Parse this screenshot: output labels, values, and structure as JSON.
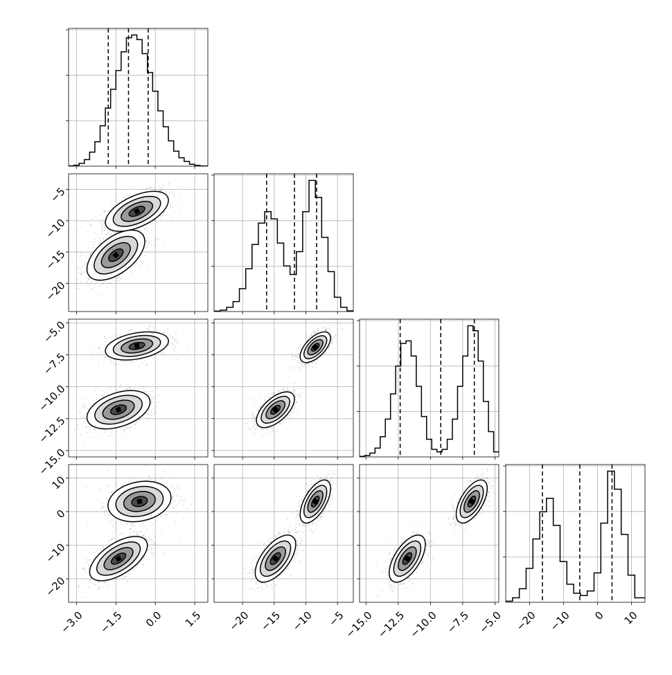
{
  "chart_data": {
    "type": "corner",
    "parameters": 4,
    "grid": true,
    "axes": [
      {
        "range": [
          -3.3,
          2.0
        ],
        "ticks": [
          -3.0,
          -1.5,
          0.0,
          1.5
        ],
        "tick_labels": [
          "−3.0",
          "−1.5",
          "0.0",
          "1.5"
        ]
      },
      {
        "range": [
          -24.5,
          -2.5
        ],
        "ticks": [
          -20,
          -15,
          -10,
          -5
        ],
        "tick_labels": [
          "−20",
          "−15",
          "−10",
          "−5"
        ]
      },
      {
        "range": [
          -15.5,
          -4.7
        ],
        "ticks": [
          -15.0,
          -12.5,
          -10.0,
          -7.5,
          -5.0
        ],
        "tick_labels": [
          "−15.0",
          "−12.5",
          "−10.0",
          "−7.5",
          "−5.0"
        ]
      },
      {
        "range": [
          -27.0,
          14.0
        ],
        "ticks": [
          -20,
          -10,
          0,
          10
        ],
        "tick_labels": [
          "−20",
          "−10",
          "0",
          "10"
        ]
      }
    ],
    "histograms": [
      {
        "param": 0,
        "quantiles": [
          -1.79,
          -1.02,
          -0.27
        ],
        "edges": [
          -3.3,
          -3.1,
          -2.9,
          -2.7,
          -2.5,
          -2.3,
          -2.1,
          -1.9,
          -1.7,
          -1.5,
          -1.3,
          -1.1,
          -0.9,
          -0.7,
          -0.5,
          -0.3,
          -0.1,
          0.1,
          0.3,
          0.5,
          0.7,
          0.9,
          1.1,
          1.3,
          1.5,
          1.7,
          2.0
        ],
        "counts": [
          0.3,
          1,
          3,
          7,
          15,
          26,
          43,
          62,
          82,
          102,
          122,
          137,
          140,
          135,
          120,
          100,
          80,
          59,
          42,
          27,
          16,
          9,
          5,
          2,
          0.8,
          0.2
        ]
      },
      {
        "param": 1,
        "quantiles": [
          -16.2,
          -11.8,
          -8.3
        ],
        "edges": [
          -24.5,
          -23.5,
          -22.5,
          -21.5,
          -20.5,
          -19.5,
          -18.5,
          -17.5,
          -16.5,
          -15.5,
          -14.5,
          -13.5,
          -12.5,
          -11.5,
          -10.5,
          -9.5,
          -8.5,
          -7.5,
          -6.5,
          -5.5,
          -4.5,
          -3.5,
          -2.5
        ],
        "counts": [
          0.3,
          1,
          3,
          7,
          16,
          30,
          47,
          62,
          70,
          65,
          48,
          32,
          26,
          42,
          70,
          92,
          80,
          52,
          28,
          10,
          3,
          0.5
        ]
      },
      {
        "param": 2,
        "quantiles": [
          -12.35,
          -9.2,
          -6.6
        ],
        "edges": [
          -15.5,
          -15.1,
          -14.7,
          -14.3,
          -13.9,
          -13.5,
          -13.1,
          -12.7,
          -12.3,
          -11.9,
          -11.5,
          -11.1,
          -10.7,
          -10.3,
          -9.9,
          -9.5,
          -9.1,
          -8.7,
          -8.3,
          -7.9,
          -7.5,
          -7.1,
          -6.7,
          -6.3,
          -5.9,
          -5.5,
          -5.1,
          -4.7
        ],
        "counts": [
          0.2,
          0.6,
          1.5,
          3.5,
          8,
          15,
          25,
          36,
          45,
          46,
          40,
          28,
          16,
          7,
          3,
          2,
          3,
          7,
          15,
          28,
          40,
          52,
          50,
          38,
          22,
          10,
          2
        ]
      },
      {
        "param": 3,
        "quantiles": [
          -16.2,
          -5.2,
          4.3
        ],
        "edges": [
          -27,
          -25,
          -23,
          -21,
          -19,
          -17,
          -15,
          -13,
          -11,
          -9,
          -7,
          -5,
          -3,
          -1,
          1,
          3,
          5,
          7,
          9,
          11,
          14
        ],
        "counts": [
          0.5,
          2,
          6,
          15,
          28,
          40,
          46,
          34,
          18,
          8,
          4,
          3,
          5,
          13,
          35,
          58,
          50,
          30,
          12,
          2
        ]
      }
    ],
    "scatter_pairs": [
      {
        "x_param": 0,
        "y_param": 1,
        "clusters": [
          {
            "mx": -0.7,
            "my": -8.5,
            "sx": 0.6,
            "sy": 1.6,
            "rho": 0.55,
            "weight": 0.5
          },
          {
            "mx": -1.5,
            "my": -15.5,
            "sx": 0.55,
            "sy": 2.0,
            "rho": 0.55,
            "weight": 0.5
          }
        ]
      },
      {
        "x_param": 0,
        "y_param": 2,
        "clusters": [
          {
            "mx": -0.7,
            "my": -6.8,
            "sx": 0.6,
            "sy": 0.55,
            "rho": 0.35,
            "weight": 0.5
          },
          {
            "mx": -1.4,
            "my": -11.8,
            "sx": 0.6,
            "sy": 0.75,
            "rho": 0.4,
            "weight": 0.5
          }
        ]
      },
      {
        "x_param": 1,
        "y_param": 2,
        "clusters": [
          {
            "mx": -8.5,
            "my": -6.9,
            "sx": 1.2,
            "sy": 0.6,
            "rho": 0.6,
            "weight": 0.5
          },
          {
            "mx": -14.8,
            "my": -11.8,
            "sx": 1.5,
            "sy": 0.7,
            "rho": 0.6,
            "weight": 0.5
          }
        ]
      },
      {
        "x_param": 0,
        "y_param": 3,
        "clusters": [
          {
            "mx": -0.6,
            "my": 3.0,
            "sx": 0.6,
            "sy": 3.0,
            "rho": 0.2,
            "weight": 0.5
          },
          {
            "mx": -1.4,
            "my": -14.0,
            "sx": 0.55,
            "sy": 3.3,
            "rho": 0.6,
            "weight": 0.5
          }
        ]
      },
      {
        "x_param": 1,
        "y_param": 3,
        "clusters": [
          {
            "mx": -8.5,
            "my": 3.0,
            "sx": 1.2,
            "sy": 3.2,
            "rho": 0.6,
            "weight": 0.5
          },
          {
            "mx": -14.8,
            "my": -14.0,
            "sx": 1.6,
            "sy": 3.5,
            "rho": 0.6,
            "weight": 0.5
          }
        ]
      },
      {
        "x_param": 2,
        "y_param": 3,
        "clusters": [
          {
            "mx": -6.8,
            "my": 3.0,
            "sx": 0.6,
            "sy": 3.2,
            "rho": 0.6,
            "weight": 0.5
          },
          {
            "mx": -11.8,
            "my": -14.0,
            "sx": 0.7,
            "sy": 3.5,
            "rho": 0.6,
            "weight": 0.5
          }
        ]
      }
    ],
    "style": {
      "line_color": "#000000",
      "point_color": "#7f7f7f",
      "grid_color": "#b0b0b0",
      "density_dark": "#000000"
    }
  }
}
